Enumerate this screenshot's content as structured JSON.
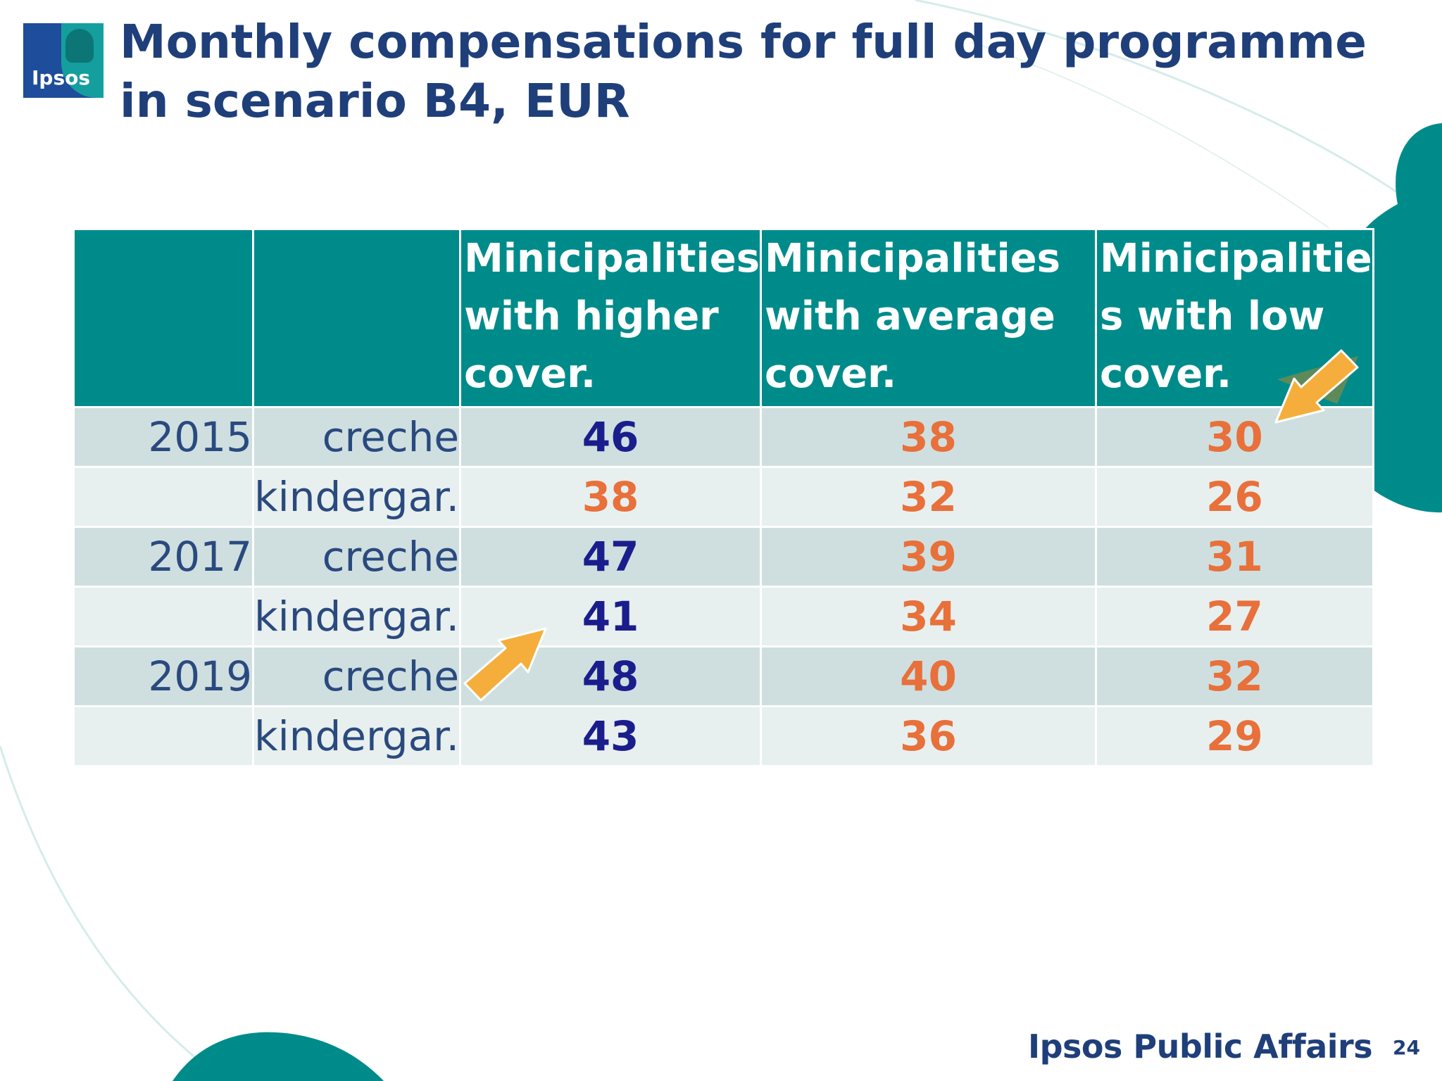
{
  "logo": {
    "text": "Ipsos"
  },
  "title": "Monthly compensations for full day programme in scenario B4, EUR",
  "table": {
    "headers": [
      "",
      "",
      "Minicipalities with higher cover.",
      "Minicipalities with average cover.",
      "Minicipalitie s with low cover."
    ],
    "rows": [
      {
        "year": "2015",
        "type": "creche",
        "values": [
          "46",
          "38",
          "30"
        ]
      },
      {
        "year": "",
        "type": "kindergar.",
        "values": [
          "38",
          "32",
          "26"
        ]
      },
      {
        "year": "2017",
        "type": "creche",
        "values": [
          "47",
          "39",
          "31"
        ]
      },
      {
        "year": "",
        "type": "kindergar.",
        "values": [
          "41",
          "34",
          "27"
        ]
      },
      {
        "year": "2019",
        "type": "creche",
        "values": [
          "48",
          "40",
          "32"
        ]
      },
      {
        "year": "",
        "type": "kindergar.",
        "values": [
          "43",
          "36",
          "29"
        ]
      }
    ]
  },
  "colors": {
    "header_bg": "#008b8b",
    "row_dark": "#cfdfe0",
    "row_light": "#e8efef",
    "value_blue": "#1a1e8c",
    "value_orange": "#e8703a",
    "arrow": "#f5ae3c"
  },
  "footer": {
    "brand": "Ipsos Public Affairs",
    "page_number": "24"
  }
}
